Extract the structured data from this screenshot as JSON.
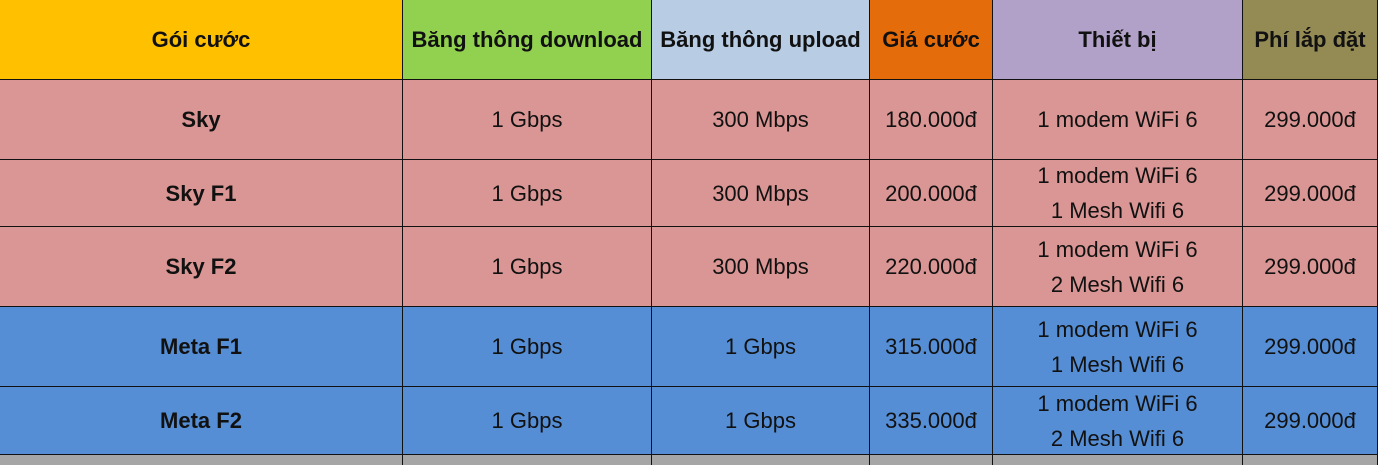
{
  "colors": {
    "header": [
      "#FFC000",
      "#92D050",
      "#B8CCE4",
      "#E46C0A",
      "#B1A0C7",
      "#948A54"
    ],
    "sky_row": "#DA9694",
    "meta_row": "#558ED5",
    "gray_row": "#A6A6A6"
  },
  "headers": [
    "Gói cước",
    "Băng thông download",
    "Băng thông upload",
    "Giá cước",
    "Thiết bị",
    "Phí lắp đặt"
  ],
  "rows": [
    {
      "group": "sky",
      "name": "Sky",
      "download": "1 Gbps",
      "upload": "300 Mbps",
      "price": "180.000đ",
      "devices": [
        "1 modem WiFi 6"
      ],
      "install": "299.000đ"
    },
    {
      "group": "sky",
      "name": "Sky F1",
      "download": "1 Gbps",
      "upload": "300 Mbps",
      "price": "200.000đ",
      "devices": [
        "1 modem WiFi 6",
        "1 Mesh Wifi 6"
      ],
      "install": "299.000đ"
    },
    {
      "group": "sky",
      "name": "Sky F2",
      "download": "1 Gbps",
      "upload": "300 Mbps",
      "price": "220.000đ",
      "devices": [
        "1 modem WiFi 6",
        "2 Mesh Wifi 6"
      ],
      "install": "299.000đ"
    },
    {
      "group": "meta",
      "name": "Meta F1",
      "download": "1 Gbps",
      "upload": "1 Gbps",
      "price": "315.000đ",
      "devices": [
        "1 modem WiFi 6",
        "1 Mesh Wifi 6"
      ],
      "install": "299.000đ"
    },
    {
      "group": "meta",
      "name": "Meta F2",
      "download": "1 Gbps",
      "upload": "1 Gbps",
      "price": "335.000đ",
      "devices": [
        "1 modem WiFi 6",
        "2 Mesh Wifi 6"
      ],
      "install": "299.000đ"
    }
  ]
}
